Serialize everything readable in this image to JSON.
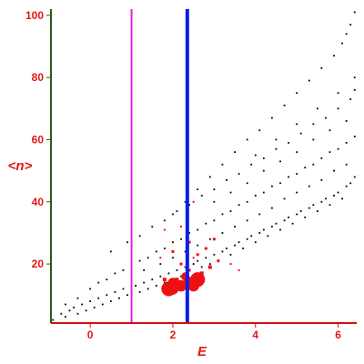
{
  "chart_data": {
    "type": "scatter",
    "title": "",
    "xlabel": "E",
    "ylabel": "<n>",
    "xlim": [
      -0.95,
      6.45
    ],
    "ylim": [
      1,
      102
    ],
    "x_ticks": [
      0,
      2,
      4,
      6
    ],
    "y_ticks": [
      20,
      40,
      60,
      80,
      100
    ],
    "grid": false,
    "legend": "none",
    "colors": {
      "axis_left": "#2a5a1a",
      "axis_bottom": "#d01010",
      "tick_text": "#e01818",
      "black_points": "#000000",
      "red_points": "#ee1111",
      "magenta_line": "#dd22dd",
      "blue_line": "#0a1ee8"
    },
    "vertical_lines": [
      {
        "x": 1.0,
        "color": "#dd22dd"
      },
      {
        "x": 2.35,
        "color": "#0a1ee8"
      }
    ],
    "series": [
      {
        "points": [
          [
            -0.9,
            2
          ],
          [
            -0.7,
            4
          ],
          [
            -0.6,
            3
          ],
          [
            -0.5,
            5
          ],
          [
            -0.4,
            6
          ],
          [
            -0.3,
            4
          ],
          [
            -0.2,
            7
          ],
          [
            -0.1,
            5
          ],
          [
            0.0,
            8
          ],
          [
            0.1,
            6
          ],
          [
            0.2,
            9
          ],
          [
            0.3,
            7
          ],
          [
            0.4,
            10
          ],
          [
            0.5,
            8
          ],
          [
            0.6,
            11
          ],
          [
            0.7,
            9
          ],
          [
            0.8,
            12
          ],
          [
            0.9,
            10
          ],
          [
            1.1,
            13
          ],
          [
            1.2,
            11
          ],
          [
            1.3,
            14
          ],
          [
            1.4,
            12
          ],
          [
            1.5,
            15
          ],
          [
            1.6,
            13
          ],
          [
            1.7,
            16
          ],
          [
            1.8,
            14
          ],
          [
            1.9,
            17
          ],
          [
            2.0,
            15
          ],
          [
            2.1,
            18
          ],
          [
            2.2,
            16
          ],
          [
            2.3,
            19
          ],
          [
            2.5,
            20
          ],
          [
            2.6,
            21
          ],
          [
            2.7,
            19
          ],
          [
            2.8,
            22
          ],
          [
            2.9,
            20
          ],
          [
            3.0,
            23
          ],
          [
            3.1,
            21
          ],
          [
            3.2,
            24
          ],
          [
            3.3,
            25
          ],
          [
            3.4,
            23
          ],
          [
            3.5,
            26
          ],
          [
            3.6,
            27
          ],
          [
            3.7,
            25
          ],
          [
            3.8,
            28
          ],
          [
            3.9,
            29
          ],
          [
            4.0,
            27
          ],
          [
            4.1,
            30
          ],
          [
            4.2,
            31
          ],
          [
            4.3,
            29
          ],
          [
            4.4,
            32
          ],
          [
            4.5,
            33
          ],
          [
            4.6,
            31
          ],
          [
            4.7,
            34
          ],
          [
            4.8,
            35
          ],
          [
            4.9,
            33
          ],
          [
            5.0,
            36
          ],
          [
            5.1,
            37
          ],
          [
            5.2,
            35
          ],
          [
            5.3,
            38
          ],
          [
            5.4,
            39
          ],
          [
            5.5,
            37
          ],
          [
            5.6,
            40
          ],
          [
            5.7,
            41
          ],
          [
            5.8,
            39
          ],
          [
            5.9,
            42
          ],
          [
            6.0,
            43
          ],
          [
            6.1,
            41
          ],
          [
            6.2,
            45
          ],
          [
            6.3,
            46
          ],
          [
            6.4,
            48
          ],
          [
            -0.6,
            7
          ],
          [
            -0.3,
            9
          ],
          [
            0.0,
            12
          ],
          [
            0.2,
            14
          ],
          [
            0.4,
            15
          ],
          [
            0.6,
            17
          ],
          [
            0.8,
            18
          ],
          [
            1.0,
            20
          ],
          [
            1.2,
            21
          ],
          [
            1.4,
            22
          ],
          [
            1.6,
            24
          ],
          [
            1.8,
            25
          ],
          [
            2.0,
            27
          ],
          [
            2.2,
            28
          ],
          [
            2.4,
            30
          ],
          [
            2.6,
            31
          ],
          [
            2.8,
            33
          ],
          [
            3.0,
            34
          ],
          [
            3.2,
            36
          ],
          [
            3.4,
            37
          ],
          [
            3.6,
            39
          ],
          [
            3.8,
            40
          ],
          [
            4.0,
            42
          ],
          [
            4.2,
            43
          ],
          [
            4.4,
            45
          ],
          [
            4.6,
            46
          ],
          [
            4.8,
            48
          ],
          [
            5.0,
            49
          ],
          [
            5.2,
            51
          ],
          [
            5.4,
            52
          ],
          [
            5.6,
            54
          ],
          [
            5.8,
            56
          ],
          [
            6.0,
            57
          ],
          [
            6.2,
            59
          ],
          [
            6.4,
            61
          ],
          [
            0.5,
            24
          ],
          [
            0.9,
            27
          ],
          [
            1.2,
            29
          ],
          [
            1.5,
            32
          ],
          [
            1.8,
            34
          ],
          [
            2.1,
            37
          ],
          [
            2.4,
            39
          ],
          [
            2.7,
            42
          ],
          [
            3.0,
            44
          ],
          [
            3.3,
            47
          ],
          [
            3.6,
            49
          ],
          [
            3.9,
            52
          ],
          [
            4.2,
            54
          ],
          [
            4.5,
            57
          ],
          [
            4.8,
            59
          ],
          [
            5.1,
            62
          ],
          [
            5.4,
            65
          ],
          [
            5.7,
            67
          ],
          [
            6.0,
            70
          ],
          [
            6.3,
            73
          ],
          [
            6.4,
            76
          ],
          [
            2.0,
            36
          ],
          [
            2.3,
            40
          ],
          [
            2.6,
            44
          ],
          [
            2.9,
            48
          ],
          [
            3.2,
            52
          ],
          [
            3.5,
            56
          ],
          [
            3.8,
            60
          ],
          [
            4.1,
            63
          ],
          [
            4.4,
            67
          ],
          [
            4.7,
            71
          ],
          [
            5.0,
            75
          ],
          [
            5.3,
            79
          ],
          [
            5.6,
            83
          ],
          [
            5.9,
            87
          ],
          [
            6.1,
            91
          ],
          [
            6.2,
            94
          ],
          [
            6.3,
            97
          ],
          [
            6.4,
            101
          ],
          [
            1.0,
            16
          ],
          [
            1.3,
            18
          ],
          [
            1.7,
            20
          ],
          [
            2.0,
            22
          ],
          [
            2.3,
            24
          ],
          [
            2.6,
            26
          ],
          [
            2.9,
            28
          ],
          [
            3.2,
            30
          ],
          [
            3.5,
            32
          ],
          [
            3.8,
            34
          ],
          [
            4.1,
            36
          ],
          [
            4.4,
            38
          ],
          [
            4.7,
            41
          ],
          [
            5.0,
            43
          ],
          [
            5.3,
            45
          ],
          [
            5.6,
            47
          ],
          [
            5.9,
            50
          ],
          [
            6.2,
            52
          ],
          [
            3.0,
            40
          ],
          [
            3.4,
            43
          ],
          [
            3.8,
            46
          ],
          [
            4.2,
            50
          ],
          [
            4.6,
            53
          ],
          [
            5.0,
            56
          ],
          [
            5.4,
            60
          ],
          [
            5.8,
            63
          ],
          [
            6.2,
            66
          ],
          [
            4.0,
            55
          ],
          [
            4.5,
            60
          ],
          [
            5.0,
            65
          ],
          [
            5.5,
            70
          ],
          [
            6.0,
            75
          ],
          [
            6.4,
            80
          ]
        ],
        "color": "#000000"
      },
      {
        "points": [
          [
            1.9,
            12
          ],
          [
            2.0,
            12
          ],
          [
            2.2,
            13
          ],
          [
            2.4,
            14
          ],
          [
            2.6,
            15
          ],
          [
            2.1,
            15
          ],
          [
            2.5,
            13
          ],
          [
            2.3,
            16
          ],
          [
            2.0,
            14
          ],
          [
            1.8,
            15
          ],
          [
            2.7,
            17
          ],
          [
            2.4,
            18
          ],
          [
            2.9,
            19
          ],
          [
            3.1,
            21
          ],
          [
            2.2,
            20
          ],
          [
            2.6,
            23
          ],
          [
            2.0,
            24
          ],
          [
            2.8,
            25
          ],
          [
            3.0,
            28
          ],
          [
            2.4,
            27
          ],
          [
            2.2,
            32
          ],
          [
            1.8,
            31
          ],
          [
            1.7,
            22
          ],
          [
            2.5,
            22
          ],
          [
            3.4,
            20
          ],
          [
            3.6,
            18
          ],
          [
            2.5,
            40
          ]
        ],
        "sizes": [
          9,
          7,
          7,
          7,
          9,
          4,
          7,
          5,
          6,
          4,
          4,
          3,
          4,
          3,
          3,
          3,
          3,
          3,
          3,
          3,
          2,
          2,
          2,
          2,
          2,
          2,
          2
        ],
        "color": "#ee1111"
      }
    ]
  }
}
